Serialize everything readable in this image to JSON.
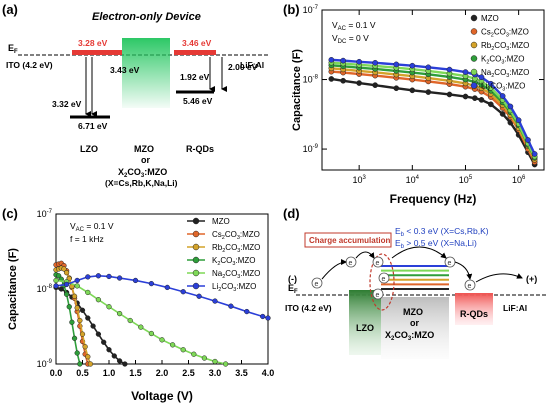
{
  "panels": {
    "a": {
      "label": "(a)",
      "title": "Electron-only Device",
      "ef": "E",
      "ef_sub": "F",
      "ito": "ITO (4.2 eV)",
      "lif": "LiF:Al",
      "levels": {
        "lzo_lumo": "3.28 eV",
        "lzo_homo": "6.71 eV",
        "lzo_gap": "3.32 eV",
        "mzo_gap": "3.43 eV",
        "rqd_lumo": "3.46 eV",
        "rqd_homo": "5.46 eV",
        "rqd_gap": "1.92 eV",
        "lif_gap": "2.00 eV"
      },
      "layers": {
        "lzo": "LZO",
        "mzo": "MZO",
        "or": "or",
        "x2": "X",
        "x2_sub": "2",
        "x2_rest": "CO",
        "x2_sub2": "3",
        "x2_end": ":MZO",
        "x_list": "(X=Cs,Rb,K,Na,Li)",
        "rqds": "R-QDs"
      },
      "colors": {
        "green": "#22c55e",
        "red": "#e53935",
        "dark": "#000000"
      }
    },
    "b": {
      "label": "(b)",
      "note_vac": "V",
      "note_vac_sub": "AC",
      "note_vac_val": " = 0.1 V",
      "note_vdc": "V",
      "note_vdc_sub": "DC",
      "note_vdc_val": " = 0 V"
    },
    "c": {
      "label": "(c)",
      "note_vac": "V",
      "note_vac_sub": "AC",
      "note_vac_val": " = 0.1 V",
      "note_f": "f = 1 kHz"
    },
    "d": {
      "label": "(d)",
      "charge": "Charge accumulation",
      "eb1": "E",
      "eb1_sub": "b",
      "eb1_rest": " < 0.3 eV (X=Cs,Rb,K)",
      "eb2": "E",
      "eb2_sub": "b",
      "eb2_rest": " > 0.5 eV (X=Na,Li)",
      "minus": "(-)",
      "plus": "(+)",
      "ef": "E",
      "ef_sub": "F",
      "ito": "ITO (4.2 eV)",
      "lzo": "LZO",
      "mzo": "MZO",
      "or": "or",
      "x2": "X",
      "x2_sub": "2",
      "x2_rest": "CO",
      "x2_sub2": "3",
      "x2_end": ":MZO",
      "rqds": "R-QDs",
      "lif": "LiF:Al",
      "electron": "e",
      "colors": {
        "blue": "#1f3fbf",
        "accum": "#c0392b"
      }
    }
  },
  "legend_labels": [
    {
      "base": "MZO",
      "sub": "",
      "rest": ""
    },
    {
      "base": "Cs",
      "sub": "2",
      "rest": "CO",
      "sub2": "3",
      "end": ":MZO"
    },
    {
      "base": "Rb",
      "sub": "2",
      "rest": "CO",
      "sub2": "3",
      "end": ":MZO"
    },
    {
      "base": "K",
      "sub": "2",
      "rest": "CO",
      "sub2": "3",
      "end": ":MZO"
    },
    {
      "base": "Na",
      "sub": "2",
      "rest": "CO",
      "sub2": "3",
      "end": ":MZO"
    },
    {
      "base": "Li",
      "sub": "2",
      "rest": "CO",
      "sub2": "3",
      "end": ":MZO"
    }
  ],
  "series_colors": [
    "#222222",
    "#e0662a",
    "#d4a32a",
    "#2e9e3a",
    "#7ed957",
    "#2b3fd8"
  ],
  "chart_data": [
    {
      "type": "scatter",
      "panel": "b",
      "xlabel": "Frequency (Hz)",
      "ylabel": "Capacitance (F)",
      "xscale": "log",
      "yscale": "log",
      "xlim": [
        200,
        3000000
      ],
      "ylim": [
        5e-10,
        1e-07
      ],
      "xticks": [
        1000,
        10000,
        100000,
        1000000
      ],
      "xtick_labels": [
        {
          "b": "10",
          "e": "3"
        },
        {
          "b": "10",
          "e": "4"
        },
        {
          "b": "10",
          "e": "5"
        },
        {
          "b": "10",
          "e": "6"
        }
      ],
      "yticks": [
        1e-09,
        1e-08,
        1e-07
      ],
      "ytick_labels": [
        {
          "b": "10",
          "e": "-9"
        },
        {
          "b": "10",
          "e": "-8"
        },
        {
          "b": "10",
          "e": "-7"
        }
      ],
      "x": [
        300,
        500,
        1000,
        2000,
        5000,
        10000,
        20000,
        50000,
        100000,
        150000,
        200000,
        300000,
        500000,
        700000,
        1000000,
        1500000,
        2000000
      ],
      "series": [
        {
          "values": [
            1.02e-08,
            9.6e-09,
            8.9e-09,
            8.3e-09,
            7.5e-09,
            7e-09,
            6.6e-09,
            6.1e-09,
            5.7e-09,
            5.4e-09,
            5.1e-09,
            4.4e-09,
            3.2e-09,
            2.4e-09,
            1.6e-09,
            9e-10,
            6e-10
          ]
        },
        {
          "values": [
            1.3e-08,
            1.26e-08,
            1.2e-08,
            1.14e-08,
            1.06e-08,
            1e-08,
            9.4e-09,
            8.6e-09,
            7.9e-09,
            7.3e-09,
            6.7e-09,
            5.6e-09,
            3.9e-09,
            2.9e-09,
            1.9e-09,
            1e-09,
            6.5e-10
          ]
        },
        {
          "values": [
            1.45e-08,
            1.4e-08,
            1.33e-08,
            1.27e-08,
            1.18e-08,
            1.12e-08,
            1.05e-08,
            9.6e-09,
            8.8e-09,
            8.1e-09,
            7.5e-09,
            6.2e-09,
            4.3e-09,
            3.1e-09,
            2e-09,
            1.1e-09,
            7e-10
          ]
        },
        {
          "values": [
            1.6e-08,
            1.55e-08,
            1.48e-08,
            1.42e-08,
            1.33e-08,
            1.26e-08,
            1.19e-08,
            1.09e-08,
            1e-08,
            9.2e-09,
            8.4e-09,
            6.9e-09,
            4.7e-09,
            3.4e-09,
            2.2e-09,
            1.15e-09,
            7.5e-10
          ]
        },
        {
          "values": [
            1.75e-08,
            1.7e-08,
            1.63e-08,
            1.57e-08,
            1.48e-08,
            1.41e-08,
            1.33e-08,
            1.22e-08,
            1.12e-08,
            1.03e-08,
            9.4e-09,
            7.6e-09,
            5.1e-09,
            3.6e-09,
            2.3e-09,
            1.2e-09,
            7.8e-10
          ]
        },
        {
          "values": [
            1.92e-08,
            1.87e-08,
            1.8e-08,
            1.74e-08,
            1.65e-08,
            1.58e-08,
            1.5e-08,
            1.39e-08,
            1.28e-08,
            1.18e-08,
            1.08e-08,
            8.7e-09,
            5.8e-09,
            4.1e-09,
            2.6e-09,
            1.35e-09,
            8.5e-10
          ]
        }
      ]
    },
    {
      "type": "scatter",
      "panel": "c",
      "xlabel": "Voltage (V)",
      "ylabel": "Capacitance (F)",
      "yscale": "log",
      "xlim": [
        0,
        4.0
      ],
      "ylim": [
        1e-09,
        1e-07
      ],
      "xticks": [
        0.0,
        0.5,
        1.0,
        1.5,
        2.0,
        2.5,
        3.0,
        3.5,
        4.0
      ],
      "xtick_labels": [
        "0.0",
        "0.5",
        "1.0",
        "1.5",
        "2.0",
        "2.5",
        "3.0",
        "3.5",
        "4.0"
      ],
      "yticks": [
        1e-09,
        1e-08,
        1e-07
      ],
      "ytick_labels": [
        {
          "b": "10",
          "e": "-9"
        },
        {
          "b": "10",
          "e": "-8"
        },
        {
          "b": "10",
          "e": "-7"
        }
      ],
      "series": [
        {
          "x": [
            0.0,
            0.1,
            0.2,
            0.3,
            0.4,
            0.5,
            0.6,
            0.7,
            0.8,
            0.9,
            1.0,
            1.1,
            1.2,
            1.3
          ],
          "values": [
            1.05e-08,
            1e-08,
            9e-09,
            7.8e-09,
            6.5e-09,
            5.2e-09,
            4.1e-09,
            3.2e-09,
            2.5e-09,
            1.95e-09,
            1.55e-09,
            1.28e-09,
            1.1e-09,
            1e-09
          ]
        },
        {
          "x": [
            0.0,
            0.05,
            0.1,
            0.15,
            0.2,
            0.25,
            0.3,
            0.35,
            0.4,
            0.45,
            0.5,
            0.55,
            0.6
          ],
          "values": [
            2.1e-08,
            2.15e-08,
            2.2e-08,
            2.05e-08,
            1.75e-08,
            1.4e-08,
            1.05e-08,
            7.5e-09,
            5e-09,
            3.2e-09,
            2e-09,
            1.35e-09,
            1e-09
          ]
        },
        {
          "x": [
            0.0,
            0.05,
            0.1,
            0.15,
            0.2,
            0.25,
            0.3,
            0.35,
            0.4,
            0.45,
            0.5,
            0.55,
            0.6,
            0.65
          ],
          "values": [
            1.8e-08,
            1.85e-08,
            1.9e-08,
            1.85e-08,
            1.65e-08,
            1.38e-08,
            1.08e-08,
            8e-09,
            5.6e-09,
            3.8e-09,
            2.5e-09,
            1.7e-09,
            1.25e-09,
            1e-09
          ]
        },
        {
          "x": [
            0.0,
            0.05,
            0.1,
            0.15,
            0.2,
            0.25,
            0.3,
            0.35,
            0.4,
            0.45
          ],
          "values": [
            1.55e-08,
            1.5e-08,
            1.35e-08,
            1.12e-08,
            8.5e-09,
            5.8e-09,
            3.6e-09,
            2.2e-09,
            1.4e-09,
            1e-09
          ]
        },
        {
          "x": [
            0.0,
            0.2,
            0.4,
            0.6,
            0.8,
            1.0,
            1.2,
            1.4,
            1.6,
            1.8,
            2.0,
            2.2,
            2.4,
            2.6,
            2.8,
            3.0,
            3.2
          ],
          "values": [
            1.3e-08,
            1.25e-08,
            1.1e-08,
            9e-09,
            7.2e-09,
            5.8e-09,
            4.7e-09,
            3.8e-09,
            3.1e-09,
            2.55e-09,
            2.1e-09,
            1.8e-09,
            1.55e-09,
            1.35e-09,
            1.2e-09,
            1.08e-09,
            1e-09
          ]
        },
        {
          "x": [
            0.0,
            0.2,
            0.4,
            0.6,
            0.8,
            1.0,
            1.2,
            1.5,
            1.8,
            2.1,
            2.4,
            2.7,
            3.0,
            3.3,
            3.6,
            3.9,
            4.0
          ],
          "values": [
            1.1e-08,
            1.15e-08,
            1.3e-08,
            1.45e-08,
            1.5e-08,
            1.47e-08,
            1.4e-08,
            1.3e-08,
            1.18e-08,
            1.05e-08,
            9.2e-09,
            8e-09,
            6.9e-09,
            5.9e-09,
            5e-09,
            4.3e-09,
            4.1e-09
          ]
        }
      ]
    }
  ]
}
